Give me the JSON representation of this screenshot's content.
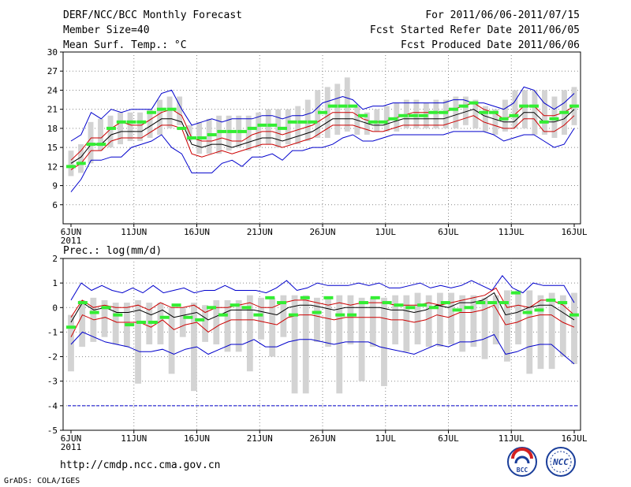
{
  "header": {
    "title": "DERF/NCC/BCC Monthly Forecast",
    "member_size": "Member Size=40",
    "variable_label": "Mean Surf. Temp.: °C",
    "forecast_period": "For 2011/06/06-2011/07/15",
    "started_date": "Fcst Started Refer Date 2011/06/05",
    "produced_date": "Fcst Produced Date 2011/06/06"
  },
  "footer": {
    "url": "http://cmdp.ncc.cma.gov.cn",
    "credit": "GrADS: COLA/IGES",
    "logo_bcc": "BCC",
    "logo_ncc": "NCC"
  },
  "colors": {
    "box": "#d3d3d3",
    "mean": "#000000",
    "envelope": "#cc0000",
    "extreme": "#0000cc",
    "marker": "#33ee33",
    "grid": "#888888",
    "floor": "#0000cc"
  },
  "chart_data": [
    {
      "type": "box",
      "title": "Mean Surf. Temp.: °C",
      "ylabel": "°C",
      "ylim": [
        3,
        30
      ],
      "yticks": [
        30,
        27,
        24,
        21,
        18,
        15,
        12,
        9,
        6
      ],
      "xtick_labels": [
        "6JUN",
        "11JUN",
        "16JUN",
        "21JUN",
        "26JUN",
        "1JUL",
        "6JUL",
        "11JUL",
        "16JUL"
      ],
      "xtick_sublabel": "2011",
      "days": 40,
      "series": [
        {
          "name": "box_top",
          "values": [
            14.5,
            15.5,
            19,
            19.5,
            20,
            20.5,
            20.5,
            20.5,
            21,
            22.5,
            23,
            23,
            18.5,
            19,
            19.5,
            20,
            20,
            20,
            20,
            20.5,
            21,
            21,
            21,
            21.5,
            22.5,
            24,
            24.5,
            25,
            26,
            21.5,
            20.5,
            21,
            21.5,
            22,
            22.5,
            22.5,
            22,
            22.5,
            22.5,
            23,
            23,
            22.5,
            21.5,
            21,
            22.5,
            24,
            24,
            24,
            24,
            23,
            24,
            24.5
          ]
        },
        {
          "name": "box_bottom",
          "values": [
            10.5,
            11,
            12.5,
            14.5,
            15,
            15.5,
            16,
            16,
            16.5,
            17,
            18,
            18.5,
            16,
            14,
            14,
            14,
            14.5,
            15,
            14.5,
            15,
            15.5,
            15,
            15.5,
            15.5,
            16,
            16.5,
            16.5,
            17,
            17.5,
            17,
            17,
            17.5,
            17.5,
            17.5,
            18,
            18,
            18,
            18,
            18,
            18,
            18.5,
            18,
            17.5,
            17,
            17.5,
            18,
            18,
            17,
            17,
            16.5,
            17,
            18.5
          ]
        },
        {
          "name": "max",
          "values": [
            16,
            17,
            20.5,
            19.5,
            21,
            20.5,
            21,
            21,
            21,
            23.5,
            24,
            21,
            18.5,
            19,
            19.5,
            19,
            19.5,
            19.5,
            19.5,
            20,
            20,
            19.5,
            20,
            20,
            20.5,
            22,
            22.5,
            23,
            22.5,
            21,
            21.5,
            21.5,
            22,
            22,
            22,
            22,
            22,
            22,
            22.5,
            22.5,
            22,
            22,
            21.5,
            21,
            22,
            24.5,
            24,
            22,
            21,
            22,
            23.5
          ]
        },
        {
          "name": "upper",
          "values": [
            13,
            14.5,
            16.5,
            16.5,
            18,
            19,
            18.5,
            18.5,
            19.5,
            20.5,
            21,
            20,
            16.5,
            16,
            16,
            16.5,
            16,
            16,
            17,
            17.5,
            17.5,
            17,
            17.5,
            18,
            18.5,
            19.5,
            20.5,
            20.5,
            20.5,
            19.5,
            19,
            19,
            19.5,
            20,
            20.5,
            20.5,
            20.5,
            20.5,
            21,
            21.5,
            22,
            21,
            20.5,
            19.5,
            20,
            21.5,
            21.5,
            20,
            20,
            20.5,
            21.5
          ]
        },
        {
          "name": "mean",
          "values": [
            12.5,
            13.5,
            15.5,
            15.5,
            17,
            17.5,
            17.5,
            17.5,
            18.5,
            19.5,
            19.5,
            19,
            15.5,
            15,
            15.5,
            15.5,
            15,
            15.5,
            16,
            16.5,
            16.5,
            16,
            16.5,
            17,
            17.5,
            18.5,
            19.5,
            19.5,
            19.5,
            19,
            18.5,
            18.5,
            19,
            19.5,
            19.5,
            19.5,
            19.5,
            19.5,
            20,
            20.5,
            21,
            20,
            19.5,
            19,
            19,
            20.5,
            20.5,
            19,
            19,
            19.5,
            21
          ]
        },
        {
          "name": "lower",
          "values": [
            11.5,
            12.5,
            14.5,
            14.5,
            16,
            16.5,
            16.5,
            16.5,
            17.5,
            18.5,
            18.5,
            18,
            14,
            13.5,
            14,
            14.5,
            14,
            14.5,
            15,
            15.5,
            15.5,
            15,
            15.5,
            16,
            16.5,
            17.5,
            18.5,
            18.5,
            18.5,
            18,
            17.5,
            17.5,
            18,
            18.5,
            18.5,
            18.5,
            18.5,
            18.5,
            19,
            19.5,
            20,
            19,
            18.5,
            18,
            18,
            19.5,
            19.5,
            17.5,
            17.5,
            18.5,
            20
          ]
        },
        {
          "name": "min",
          "values": [
            8,
            10,
            13,
            13,
            13.5,
            13.5,
            15,
            15.5,
            16,
            17,
            15,
            14,
            11,
            11,
            11,
            12.5,
            13,
            12,
            13.5,
            13.5,
            14,
            13,
            14.5,
            14.5,
            15,
            15,
            15.5,
            16.5,
            17,
            16,
            16,
            16.5,
            17,
            17,
            17,
            17,
            17,
            17,
            17.5,
            17.5,
            17.5,
            17.5,
            17,
            16,
            16.5,
            17,
            17,
            16,
            15,
            15.5,
            18
          ]
        },
        {
          "name": "marker",
          "values": [
            12,
            12.5,
            15.5,
            15.5,
            18,
            19,
            19,
            19,
            20.5,
            21,
            21,
            18,
            16.5,
            16.5,
            17,
            17.5,
            17.5,
            17.5,
            18,
            18.5,
            18.5,
            18,
            19,
            19,
            19,
            20.5,
            21.5,
            21.5,
            21.5,
            20,
            19,
            19,
            19.5,
            20,
            20,
            20,
            20.5,
            20.5,
            21,
            21.5,
            22,
            20.5,
            20.5,
            19.5,
            20,
            21.5,
            21.5,
            19,
            19.5,
            20.5,
            21.5
          ]
        }
      ]
    },
    {
      "type": "box",
      "title": "Prec.: log(mm/d)",
      "ylabel": "log(mm/d)",
      "ylim": [
        -5,
        2
      ],
      "yticks": [
        2,
        1,
        0,
        -1,
        -2,
        -3,
        -4,
        -5
      ],
      "xtick_labels": [
        "6JUN",
        "11JUN",
        "16JUN",
        "21JUN",
        "26JUN",
        "1JUL",
        "6JUL",
        "11JUL",
        "16JUL"
      ],
      "xtick_sublabel": "2011",
      "floor": -4,
      "days": 40,
      "series": [
        {
          "name": "box_top",
          "values": [
            -0.3,
            0.3,
            0.4,
            0.3,
            0.2,
            0.2,
            0.3,
            0.2,
            0.2,
            0,
            0,
            0.2,
            0.1,
            0.3,
            0.3,
            0.3,
            0.5,
            0.4,
            0.4,
            0.5,
            0.5,
            0.5,
            0.4,
            0.4,
            0.5,
            0.5,
            0.4,
            0.4,
            0.4,
            0.5,
            0.5,
            0.6,
            0.5,
            0.6,
            0.6,
            0.5,
            0.5,
            0.4,
            0.5,
            0.7,
            0.7,
            0.7,
            0.5,
            0.6,
            0.5,
            0.6
          ]
        },
        {
          "name": "box_bottom",
          "values": [
            -2.6,
            -1.6,
            -1.4,
            -1.2,
            -1.5,
            -1.6,
            -3.1,
            -1.5,
            -1.5,
            -2.7,
            -1.2,
            -3.4,
            -1.4,
            -1.5,
            -1.8,
            -1.8,
            -2.6,
            -1.3,
            -2.0,
            -1.2,
            -3.5,
            -3.5,
            -1.4,
            -1.6,
            -3.5,
            -1.5,
            -3.0,
            -1.6,
            -3.2,
            -1.5,
            -1.8,
            -1.5,
            -1.6,
            -1.6,
            -1.5,
            -1.8,
            -1.6,
            -2.1,
            -1.5,
            -2.2,
            -1.5,
            -2.7,
            -2.5,
            -2.5,
            -2.0,
            -2.3,
            -1.4,
            -2.0,
            -2.7,
            -3.5,
            -2.0,
            -1.4
          ]
        },
        {
          "name": "max",
          "values": [
            0.3,
            1.0,
            0.7,
            0.9,
            0.7,
            0.6,
            0.8,
            0.6,
            0.9,
            0.6,
            0.7,
            0.8,
            0.6,
            0.7,
            0.7,
            0.9,
            0.7,
            0.7,
            0.7,
            0.6,
            0.8,
            1.1,
            0.7,
            0.8,
            1.0,
            0.9,
            0.9,
            0.9,
            1.0,
            0.9,
            1.0,
            0.8,
            0.8,
            0.9,
            1.0,
            0.8,
            0.9,
            0.8,
            0.9,
            1.1,
            0.9,
            0.7,
            1.3,
            0.8,
            0.6,
            1.0,
            0.9,
            0.9,
            0.9,
            0.2
          ]
        },
        {
          "name": "upper",
          "values": [
            -0.4,
            0.3,
            0.0,
            0.1,
            0.0,
            0.0,
            0.1,
            -0.1,
            0.2,
            0.0,
            0.0,
            0.1,
            -0.2,
            0.0,
            0.0,
            0.1,
            0.2,
            0.0,
            0.0,
            0.2,
            0.3,
            0.3,
            0.2,
            0.1,
            0.2,
            0.1,
            0.2,
            0.2,
            0.2,
            0.1,
            0.1,
            0.1,
            0.2,
            0.1,
            0.2,
            0.3,
            0.4,
            0.5,
            0.8,
            0.0,
            0.1,
            0.0,
            0.3,
            0.3,
            0.1,
            -0.3
          ]
        },
        {
          "name": "mean",
          "values": [
            -0.6,
            0.2,
            -0.1,
            0.0,
            -0.2,
            -0.2,
            -0.1,
            -0.3,
            -0.1,
            -0.4,
            -0.3,
            -0.2,
            -0.5,
            -0.3,
            -0.1,
            -0.1,
            -0.1,
            -0.2,
            -0.3,
            0.0,
            0.1,
            0.1,
            0.0,
            -0.1,
            0.0,
            0.0,
            0.0,
            0.0,
            -0.1,
            -0.1,
            -0.2,
            -0.1,
            0.1,
            0.0,
            0.2,
            0.2,
            0.3,
            0.6,
            -0.3,
            -0.2,
            0.0,
            0.1,
            0.1,
            -0.2,
            -0.5
          ]
        },
        {
          "name": "lower",
          "values": [
            -1.2,
            -0.3,
            -0.5,
            -0.4,
            -0.6,
            -0.6,
            -0.6,
            -0.8,
            -0.5,
            -0.9,
            -0.7,
            -0.6,
            -1.0,
            -0.7,
            -0.5,
            -0.5,
            -0.5,
            -0.6,
            -0.7,
            -0.4,
            -0.3,
            -0.3,
            -0.4,
            -0.5,
            -0.4,
            -0.4,
            -0.4,
            -0.4,
            -0.5,
            -0.5,
            -0.6,
            -0.5,
            -0.3,
            -0.4,
            -0.2,
            -0.2,
            -0.1,
            0.1,
            -0.7,
            -0.6,
            -0.4,
            -0.3,
            -0.3,
            -0.6,
            -0.8
          ]
        },
        {
          "name": "min",
          "values": [
            -1.5,
            -1.0,
            -1.2,
            -1.4,
            -1.5,
            -1.6,
            -1.8,
            -1.8,
            -1.7,
            -1.9,
            -1.7,
            -1.6,
            -1.9,
            -1.7,
            -1.5,
            -1.5,
            -1.3,
            -1.6,
            -1.6,
            -1.4,
            -1.3,
            -1.3,
            -1.4,
            -1.5,
            -1.4,
            -1.4,
            -1.4,
            -1.6,
            -1.7,
            -1.8,
            -1.9,
            -1.7,
            -1.5,
            -1.6,
            -1.4,
            -1.4,
            -1.3,
            -1.1,
            -1.9,
            -1.8,
            -1.6,
            -1.5,
            -1.5,
            -1.9,
            -2.3
          ]
        },
        {
          "name": "marker",
          "values": [
            -0.8,
            0.2,
            -0.2,
            0.0,
            -0.3,
            -0.7,
            -0.6,
            -0.6,
            -0.4,
            0.1,
            -0.4,
            -0.5,
            0.0,
            -0.3,
            0.1,
            0.0,
            -0.3,
            0.4,
            0.2,
            -0.3,
            0.4,
            -0.2,
            0.4,
            -0.3,
            -0.3,
            0.2,
            0.4,
            0.2,
            0.1,
            0.0,
            0.1,
            0.0,
            0.2,
            -0.1,
            0.0,
            0.2,
            0.2,
            0.2,
            0.6,
            -0.2,
            -0.1,
            0.3,
            0.2,
            -0.3
          ]
        }
      ]
    }
  ]
}
